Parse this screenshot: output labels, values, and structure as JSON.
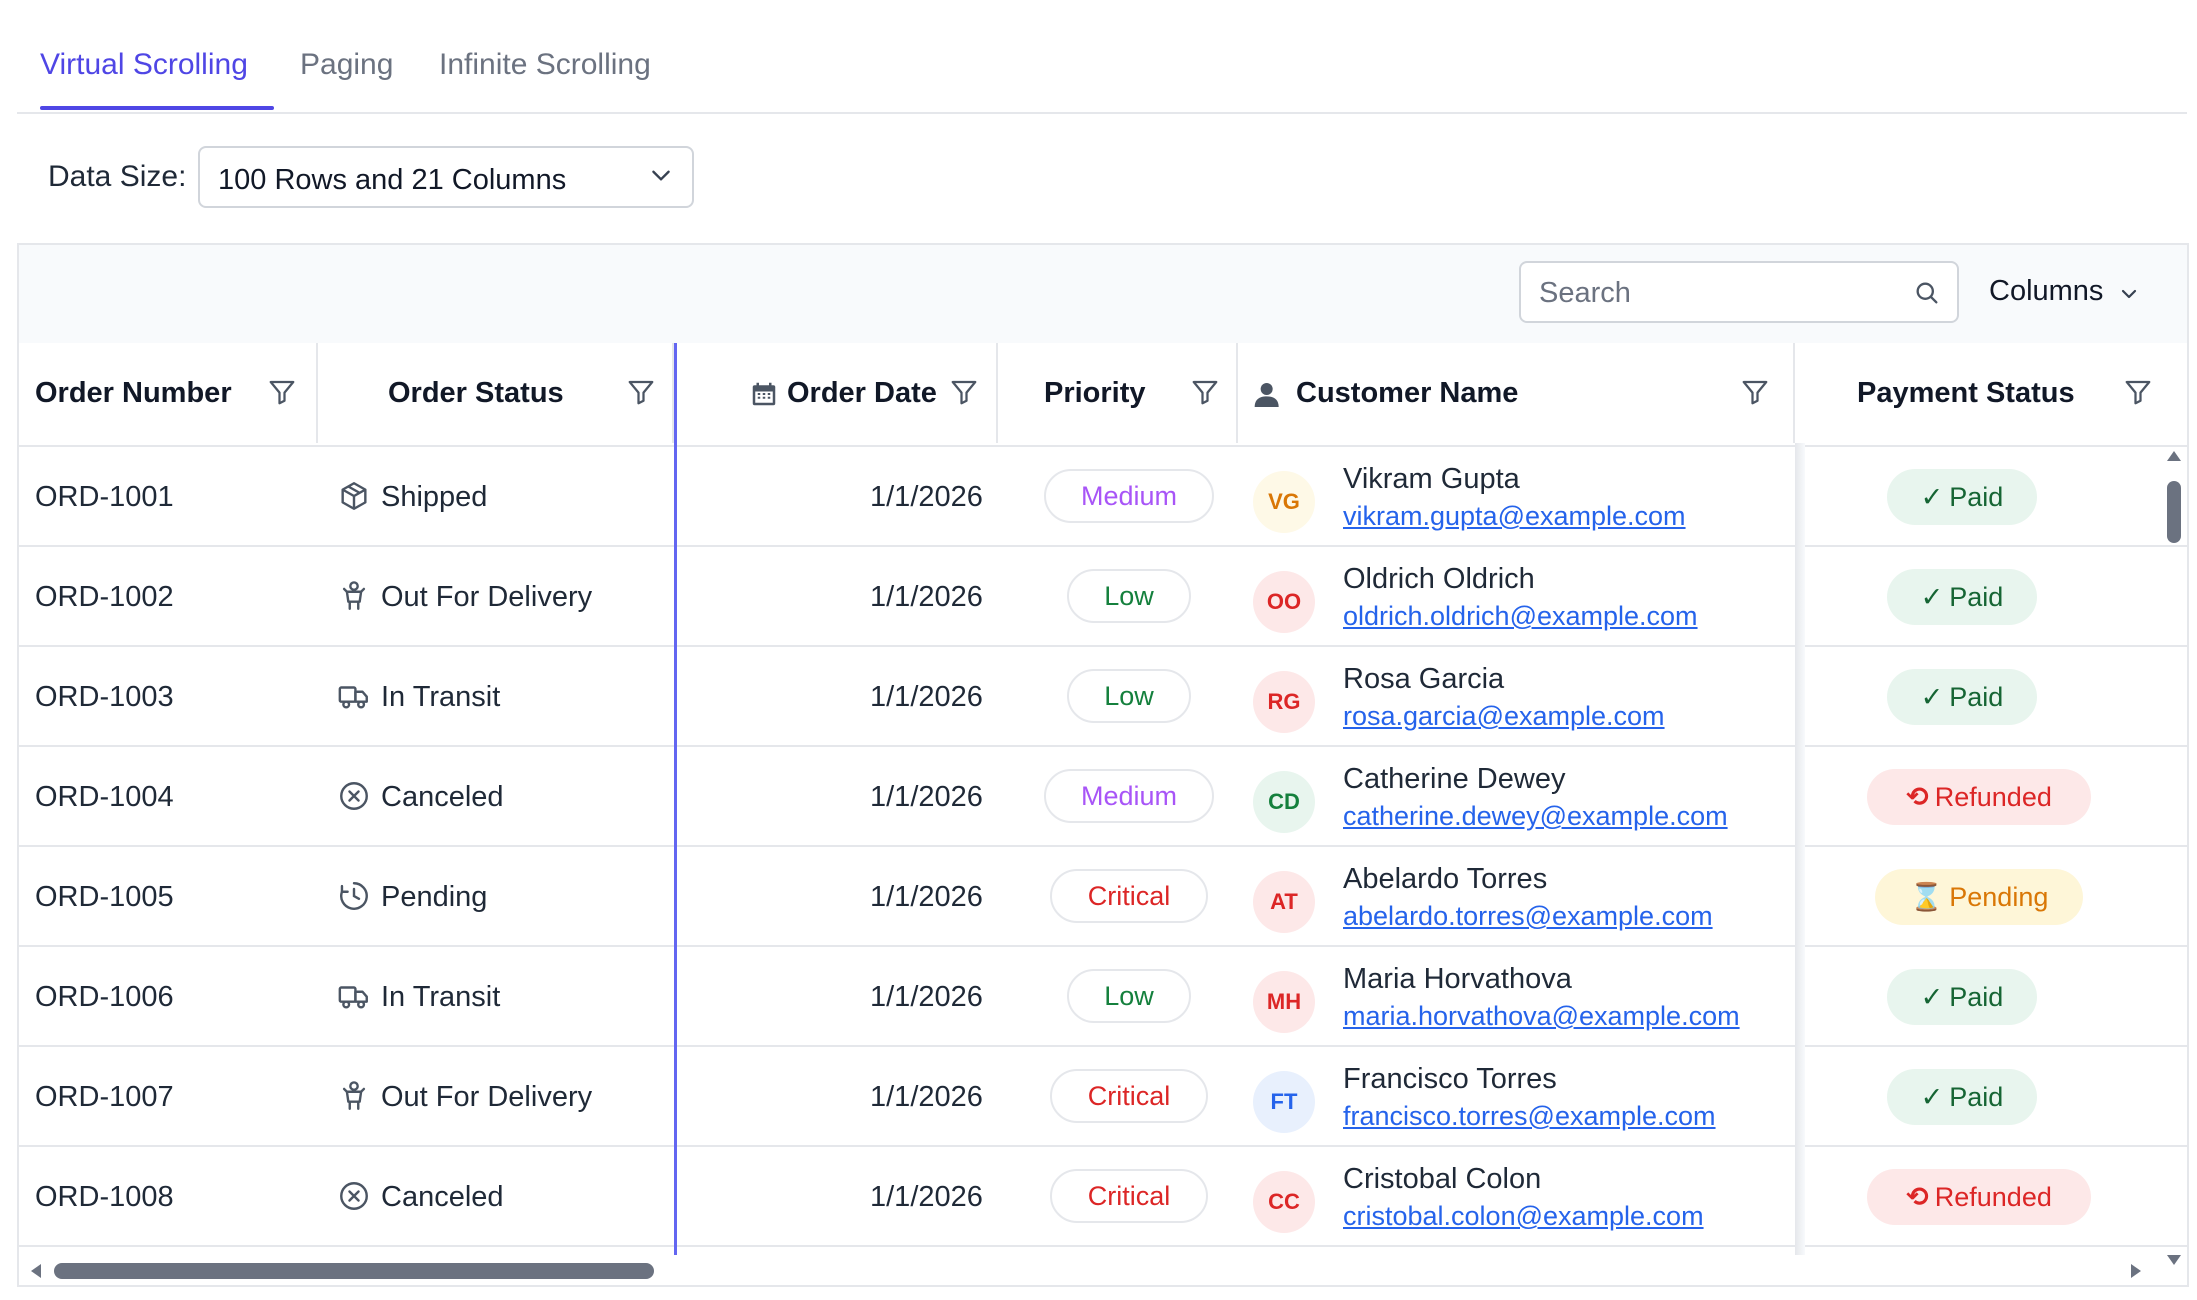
{
  "tabs": [
    {
      "label": "Virtual Scrolling",
      "active": true
    },
    {
      "label": "Paging",
      "active": false
    },
    {
      "label": "Infinite Scrolling",
      "active": false
    }
  ],
  "data_size": {
    "label": "Data Size:",
    "value": "100 Rows and 21 Columns"
  },
  "toolbar": {
    "search_placeholder": "Search",
    "columns_label": "Columns"
  },
  "columns": [
    "Order Number",
    "Order Status",
    "Order Date",
    "Priority",
    "Customer Name",
    "Payment Status"
  ],
  "colors": {
    "accent": "#4f46e5",
    "priority": {
      "Medium": "#a855f7",
      "Low": "#15803d",
      "Critical": "#dc2626"
    },
    "payment": {
      "Paid": {
        "bg": "#e8f5ee",
        "fg": "#166534"
      },
      "Refunded": {
        "bg": "#fde8e8",
        "fg": "#dc2626"
      },
      "Pending": {
        "bg": "#fef6d8",
        "fg": "#d97706"
      }
    }
  },
  "rows": [
    {
      "order": "ORD-1001",
      "status": "Shipped",
      "status_icon": "package-icon",
      "date": "1/1/2026",
      "priority": "Medium",
      "initials": "VG",
      "avatar_bg": "#fef9e7",
      "avatar_fg": "#d97706",
      "name": "Vikram Gupta",
      "email": "vikram.gupta@example.com",
      "payment": "Paid",
      "payment_glyph": "✓"
    },
    {
      "order": "ORD-1002",
      "status": "Out For Delivery",
      "status_icon": "delivery-person-icon",
      "date": "1/1/2026",
      "priority": "Low",
      "initials": "OO",
      "avatar_bg": "#fde8e8",
      "avatar_fg": "#dc2626",
      "name": "Oldrich Oldrich",
      "email": "oldrich.oldrich@example.com",
      "payment": "Paid",
      "payment_glyph": "✓"
    },
    {
      "order": "ORD-1003",
      "status": "In Transit",
      "status_icon": "truck-icon",
      "date": "1/1/2026",
      "priority": "Low",
      "initials": "RG",
      "avatar_bg": "#fde8e8",
      "avatar_fg": "#dc2626",
      "name": "Rosa Garcia",
      "email": "rosa.garcia@example.com",
      "payment": "Paid",
      "payment_glyph": "✓"
    },
    {
      "order": "ORD-1004",
      "status": "Canceled",
      "status_icon": "circle-x-icon",
      "date": "1/1/2026",
      "priority": "Medium",
      "initials": "CD",
      "avatar_bg": "#e8f5ee",
      "avatar_fg": "#15803d",
      "name": "Catherine Dewey",
      "email": "catherine.dewey@example.com",
      "payment": "Refunded",
      "payment_glyph": "⟲"
    },
    {
      "order": "ORD-1005",
      "status": "Pending",
      "status_icon": "clock-icon",
      "date": "1/1/2026",
      "priority": "Critical",
      "initials": "AT",
      "avatar_bg": "#fde8e8",
      "avatar_fg": "#dc2626",
      "name": "Abelardo Torres",
      "email": "abelardo.torres@example.com",
      "payment": "Pending",
      "payment_glyph": "⌛"
    },
    {
      "order": "ORD-1006",
      "status": "In Transit",
      "status_icon": "truck-icon",
      "date": "1/1/2026",
      "priority": "Low",
      "initials": "MH",
      "avatar_bg": "#fde8e8",
      "avatar_fg": "#dc2626",
      "name": "Maria Horvathova",
      "email": "maria.horvathova@example.com",
      "payment": "Paid",
      "payment_glyph": "✓"
    },
    {
      "order": "ORD-1007",
      "status": "Out For Delivery",
      "status_icon": "delivery-person-icon",
      "date": "1/1/2026",
      "priority": "Critical",
      "initials": "FT",
      "avatar_bg": "#e8f0fd",
      "avatar_fg": "#2563eb",
      "name": "Francisco Torres",
      "email": "francisco.torres@example.com",
      "payment": "Paid",
      "payment_glyph": "✓"
    },
    {
      "order": "ORD-1008",
      "status": "Canceled",
      "status_icon": "circle-x-icon",
      "date": "1/1/2026",
      "priority": "Critical",
      "initials": "CC",
      "avatar_bg": "#fde8e8",
      "avatar_fg": "#dc2626",
      "name": "Cristobal Colon",
      "email": "cristobal.colon@example.com",
      "payment": "Refunded",
      "payment_glyph": "⟲"
    }
  ]
}
